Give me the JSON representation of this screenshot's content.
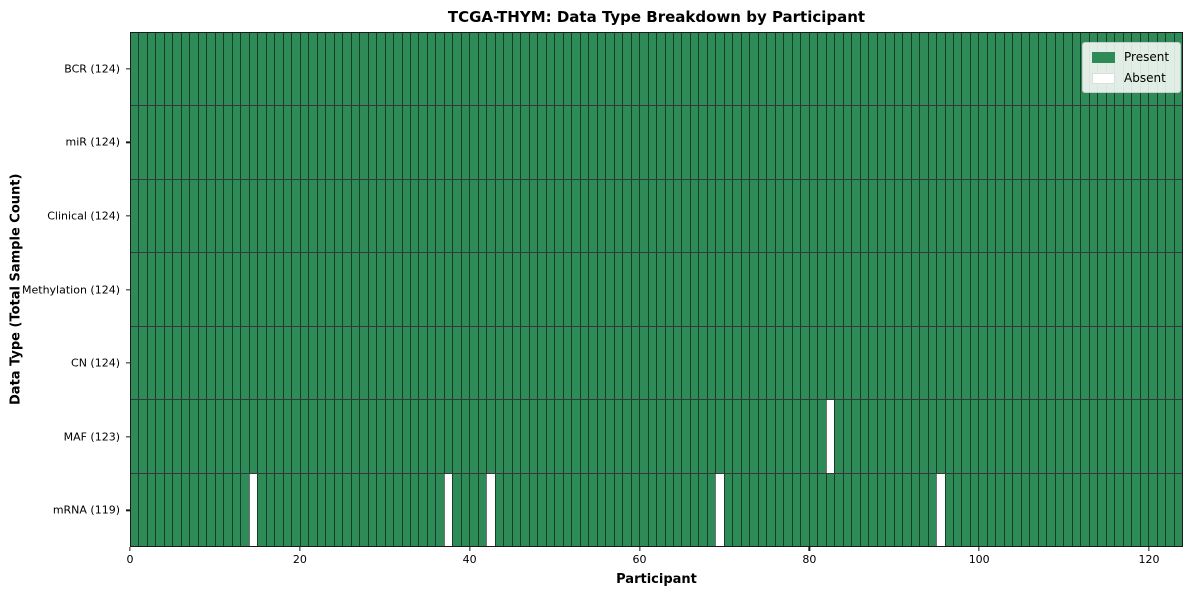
{
  "chart_data": {
    "type": "heatmap",
    "title": "TCGA-THYM: Data Type Breakdown by Participant",
    "xlabel": "Participant",
    "ylabel": "Data Type (Total Sample Count)",
    "n_participants": 124,
    "x_ticks": [
      0,
      20,
      40,
      60,
      80,
      100,
      120
    ],
    "x_range": [
      0,
      124
    ],
    "grid": false,
    "legend_position": "upper right",
    "rows": [
      {
        "data_type": "BCR",
        "label": "BCR (124)",
        "total": 124,
        "absent_indices": []
      },
      {
        "data_type": "miR",
        "label": "miR (124)",
        "total": 124,
        "absent_indices": []
      },
      {
        "data_type": "Clinical",
        "label": "Clinical (124)",
        "total": 124,
        "absent_indices": []
      },
      {
        "data_type": "Methylation",
        "label": "Methylation (124)",
        "total": 124,
        "absent_indices": []
      },
      {
        "data_type": "CN",
        "label": "CN (124)",
        "total": 124,
        "absent_indices": []
      },
      {
        "data_type": "MAF",
        "label": "MAF (123)",
        "total": 123,
        "absent_indices": [
          82
        ]
      },
      {
        "data_type": "mRNA",
        "label": "mRNA (119)",
        "total": 119,
        "absent_indices": [
          14,
          37,
          42,
          69,
          95
        ]
      }
    ],
    "legend": [
      {
        "label": "Present",
        "color": "#2E8B57"
      },
      {
        "label": "Absent",
        "color": "#ffffff"
      }
    ],
    "colors": {
      "present": "#2E8B57",
      "absent": "#ffffff",
      "cell_edge": "rgba(0,0,0,0.55)",
      "row_separator": "rgba(0,0,0,0.78)",
      "spine": "#1a1a1a"
    }
  }
}
